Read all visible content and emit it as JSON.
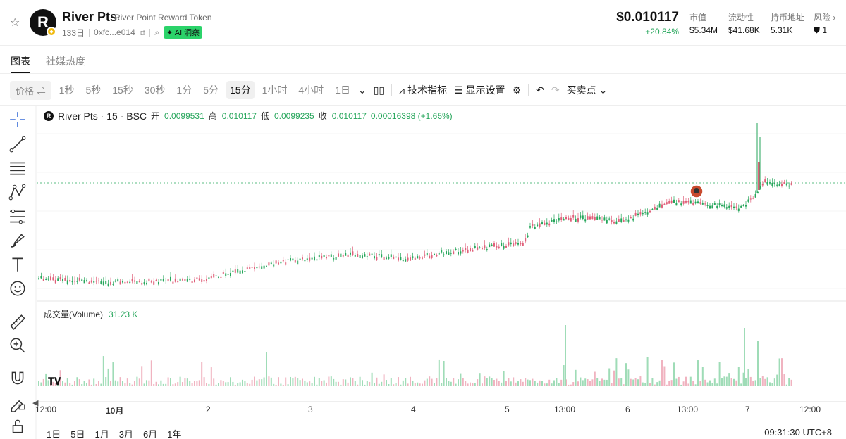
{
  "header": {
    "token_symbol": "River Pts",
    "token_full_name": "River Point Reward Token",
    "logo_letter": "R",
    "age": "133日",
    "address": "0xfc...e014",
    "ai_badge": "AI 洞察",
    "price": "$0.010117",
    "change": "+20.84%",
    "stats": [
      {
        "label": "市值",
        "value": "$5.34M"
      },
      {
        "label": "流动性",
        "value": "$41.68K"
      },
      {
        "label": "持币地址",
        "value": "5.31K"
      },
      {
        "label": "风险 ›",
        "value": "1"
      }
    ]
  },
  "tabs": [
    "图表",
    "社媒热度"
  ],
  "toolbar": {
    "price_toggle": "价格",
    "timeframes": [
      "1秒",
      "5秒",
      "15秒",
      "30秒",
      "1分",
      "5分",
      "15分",
      "1小时",
      "4小时",
      "1日"
    ],
    "active_timeframe": "15分",
    "indicators": "技术指标",
    "display_settings": "显示设置",
    "buy_sell_points": "买卖点"
  },
  "legend": {
    "symbol": "River Pts · 15 · BSC",
    "open_label": "开=",
    "open": "0.0099531",
    "high_label": "高=",
    "high": "0.010117",
    "low_label": "低=",
    "low": "0.0099235",
    "close_label": "收=",
    "close": "0.010117",
    "change": "0.00016398 (+1.65%)"
  },
  "volume": {
    "label": "成交量(Volume)",
    "value": "31.23 K"
  },
  "xaxis": [
    "12:00",
    "10月",
    "2",
    "3",
    "4",
    "5",
    "13:00",
    "6",
    "13:00",
    "7",
    "12:00"
  ],
  "ranges": [
    "1日",
    "5日",
    "1月",
    "3月",
    "6月",
    "1年"
  ],
  "clock": "09:31:30 UTC+8",
  "watermark": "TV",
  "chart_data": {
    "type": "candlestick",
    "up_color": "#26a65b",
    "down_color": "#e0607a",
    "grid": true,
    "note_price_line": "0.010117"
  }
}
